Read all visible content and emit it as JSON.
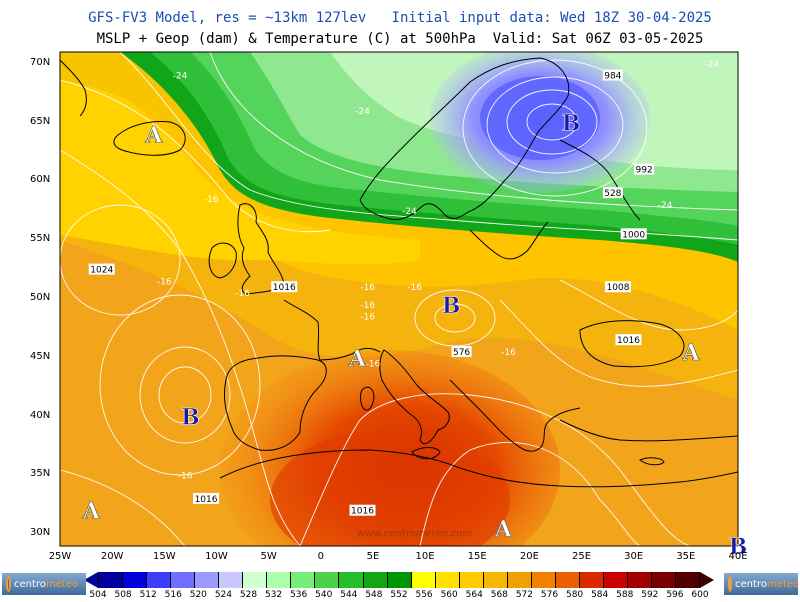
{
  "header": {
    "line1": "GFS-FV3 Model, res = ~13km 127lev   Initial input data: Wed 18Z 30-04-2025",
    "line2": "MSLP + Geop (dam) & Temperature (C) at 500hPa  Valid: Sat 06Z 03-05-2025"
  },
  "map": {
    "lat_labels": [
      "70N",
      "65N",
      "60N",
      "55N",
      "50N",
      "45N",
      "40N",
      "35N",
      "30N"
    ],
    "lon_labels": [
      "25W",
      "20W",
      "15W",
      "10W",
      "5W",
      "0",
      "5E",
      "10E",
      "15E",
      "20E",
      "25E",
      "30E",
      "35E",
      "40E"
    ],
    "pressure_centers": [
      {
        "label": "A",
        "kind": "high",
        "lon": -16,
        "lat": 64
      },
      {
        "label": "B",
        "kind": "low",
        "lon": 24,
        "lat": 65
      },
      {
        "label": "B",
        "kind": "low",
        "lon": 12.5,
        "lat": 49.5
      },
      {
        "label": "A",
        "kind": "high",
        "lon": 35.5,
        "lat": 45.5
      },
      {
        "label": "A",
        "kind": "high",
        "lon": 3.5,
        "lat": 45
      },
      {
        "label": "B",
        "kind": "low",
        "lon": -12.5,
        "lat": 40
      },
      {
        "label": "A",
        "kind": "high",
        "lon": -22,
        "lat": 32
      },
      {
        "label": "A",
        "kind": "high",
        "lon": 17.5,
        "lat": 30.5
      },
      {
        "label": "B",
        "kind": "low",
        "lon": 40,
        "lat": 29
      }
    ],
    "contour_labels": [
      {
        "text": "-24",
        "lon": -13.5,
        "lat": 69
      },
      {
        "text": "-24",
        "lon": 4,
        "lat": 66
      },
      {
        "text": "-24",
        "lon": 8.5,
        "lat": 57.5
      },
      {
        "text": "-24",
        "lon": 33,
        "lat": 58
      },
      {
        "text": "-24",
        "lon": 37.5,
        "lat": 70
      },
      {
        "text": "984",
        "lon": 28,
        "lat": 69
      },
      {
        "text": "992",
        "lon": 31,
        "lat": 61
      },
      {
        "text": "528",
        "lon": 28,
        "lat": 59
      },
      {
        "text": "1000",
        "lon": 30,
        "lat": 55.5
      },
      {
        "text": "1008",
        "lon": 28.5,
        "lat": 51
      },
      {
        "text": "1016",
        "lon": 29.5,
        "lat": 46.5
      },
      {
        "text": "1024",
        "lon": -21,
        "lat": 52.5
      },
      {
        "text": "1016",
        "lon": -3.5,
        "lat": 51
      },
      {
        "text": "1016",
        "lon": -11,
        "lat": 33
      },
      {
        "text": "1016",
        "lon": 4,
        "lat": 32
      },
      {
        "text": "576",
        "lon": 13.5,
        "lat": 45.5
      },
      {
        "text": "-16",
        "lon": -10.5,
        "lat": 58.5
      },
      {
        "text": "-16",
        "lon": -15,
        "lat": 51.5
      },
      {
        "text": "-16",
        "lon": -7.5,
        "lat": 50.5
      },
      {
        "text": "-16",
        "lon": 4.5,
        "lat": 51
      },
      {
        "text": "-16",
        "lon": 9,
        "lat": 51
      },
      {
        "text": "-16",
        "lon": 4.5,
        "lat": 49.5
      },
      {
        "text": "-16",
        "lon": 4.5,
        "lat": 48.5
      },
      {
        "text": "-16",
        "lon": 18,
        "lat": 45.5
      },
      {
        "text": "-16",
        "lon": 5,
        "lat": 44.5
      },
      {
        "text": "-16",
        "lon": -13,
        "lat": 35
      }
    ],
    "watermark": "www.centrometeo.com",
    "colors": {
      "background": "#ffd200",
      "warm_orange": "#f2a41a",
      "hot_red": "#e54800",
      "cold_green": "#1fb33c",
      "cold_blue": "#6f74ff",
      "coast_line": "#000000",
      "contour_line": "#ffffff"
    }
  },
  "colorbar": {
    "ticks": [
      "504",
      "508",
      "512",
      "516",
      "520",
      "524",
      "528",
      "532",
      "536",
      "540",
      "544",
      "548",
      "552",
      "556",
      "560",
      "564",
      "568",
      "572",
      "576",
      "580",
      "584",
      "588",
      "592",
      "596",
      "600"
    ],
    "colors": [
      "#0000a0",
      "#0000dc",
      "#3c3cff",
      "#6e6eff",
      "#9a9aff",
      "#c8c8ff",
      "#d2ffd2",
      "#aaffaa",
      "#78ee78",
      "#4ad24a",
      "#28be28",
      "#14a514",
      "#009600",
      "#ffff00",
      "#ffe000",
      "#ffcc00",
      "#f5b800",
      "#f0a000",
      "#f08200",
      "#eb5f00",
      "#dc2800",
      "#c80000",
      "#a00000",
      "#780000",
      "#500000"
    ]
  },
  "logo": {
    "part1": "centro",
    "part2": "meteo"
  }
}
